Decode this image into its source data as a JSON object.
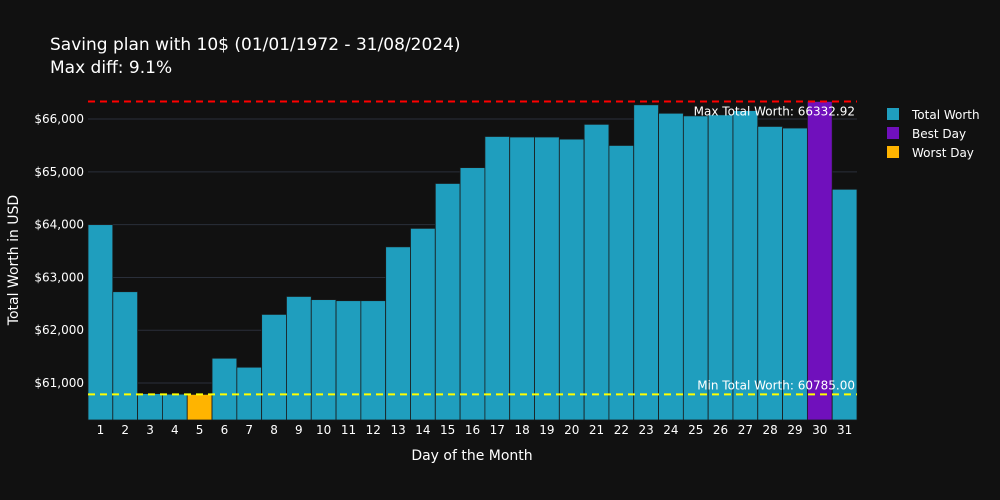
{
  "chart_data": {
    "type": "bar",
    "title": "Saving plan with 10$ (01/01/1972 - 31/08/2024)",
    "subtitle": "Max diff: 9.1%",
    "xlabel": "Day of the Month",
    "ylabel": "Total Worth in USD",
    "categories": [
      "1",
      "2",
      "3",
      "4",
      "5",
      "6",
      "7",
      "8",
      "9",
      "10",
      "11",
      "12",
      "13",
      "14",
      "15",
      "16",
      "17",
      "18",
      "19",
      "20",
      "21",
      "22",
      "23",
      "24",
      "25",
      "26",
      "27",
      "28",
      "29",
      "30",
      "31"
    ],
    "values": [
      64000,
      62730,
      60800,
      60790,
      60785,
      61470,
      61300,
      62300,
      62640,
      62580,
      62560,
      62560,
      63580,
      63930,
      64780,
      65080,
      65670,
      65660,
      65660,
      65620,
      65900,
      65500,
      66270,
      66110,
      66060,
      66080,
      66160,
      65860,
      65830,
      66332.92,
      64670
    ],
    "best_index": 29,
    "worst_index": 4,
    "ylim": [
      60300,
      66550
    ],
    "yticks": [
      61000,
      62000,
      63000,
      64000,
      65000,
      66000
    ],
    "ytick_labels": [
      "$61,000",
      "$62,000",
      "$63,000",
      "$64,000",
      "$65,000",
      "$66,000"
    ],
    "max_line": {
      "value": 66332.92,
      "label": "Max Total Worth: 66332.92",
      "color": "#ff0000"
    },
    "min_line": {
      "value": 60785.0,
      "label": "Min Total Worth: 60785.00",
      "color": "#ffff00"
    },
    "legend": [
      {
        "name": "Total Worth",
        "color": "#1f9ebe"
      },
      {
        "name": "Best Day",
        "color": "#7010bc"
      },
      {
        "name": "Worst Day",
        "color": "#ffb400"
      }
    ],
    "legend_position": "top-right",
    "grid": true
  }
}
